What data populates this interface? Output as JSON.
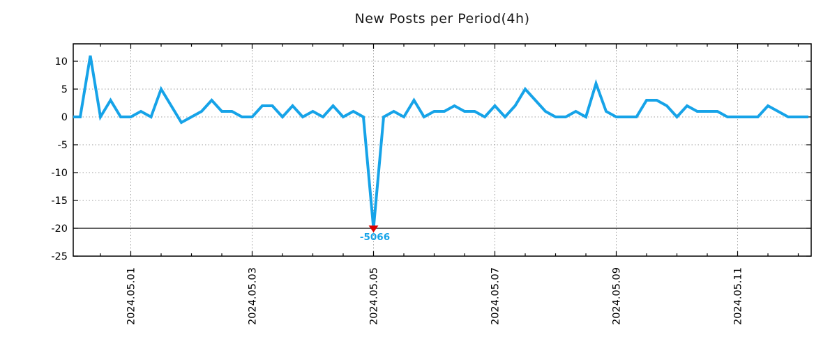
{
  "title": "New Posts per Period(4h)",
  "colors": {
    "line": "#16a3e8",
    "marker": "#dd0000",
    "grid": "#9e9e9e",
    "axis": "#000000",
    "title_text": "#1a1a1a",
    "min_line": "#000000"
  },
  "chart_data": {
    "type": "line",
    "title": "New Posts per Period(4h)",
    "xlabel": "",
    "ylabel": "",
    "x_start": "2024.04.30 00:00",
    "period_hours": 4,
    "values": [
      0,
      0,
      11,
      0,
      3,
      0,
      0,
      1,
      0,
      5,
      2,
      -1,
      0,
      1,
      3,
      1,
      1,
      0,
      0,
      2,
      2,
      0,
      2,
      0,
      1,
      0,
      2,
      0,
      1,
      0,
      -5066,
      0,
      1,
      0,
      3,
      0,
      1,
      1,
      2,
      1,
      1,
      0,
      2,
      0,
      2,
      5,
      3,
      1,
      0,
      0,
      1,
      0,
      6,
      1,
      0,
      0,
      0,
      3,
      3,
      2,
      0,
      2,
      1,
      1,
      1,
      0,
      0,
      0,
      0,
      2,
      1,
      0,
      0,
      0
    ],
    "y_ticks": [
      10,
      5,
      0,
      -5,
      -10,
      -15,
      -20,
      -25
    ],
    "x_tick_labels": [
      "2024.05.01",
      "2024.05.03",
      "2024.05.05",
      "2024.05.07",
      "2024.05.09",
      "2024.05.11"
    ],
    "x_major_tick_every": "2 days",
    "x_minor_tick_every": "12 hours",
    "ylim": [
      -25,
      13.1
    ],
    "grid": true,
    "legend": "none",
    "min_annotation": {
      "label": "-5066",
      "at_index": 30,
      "clipped_at": -20,
      "marker": "red-triangle-down",
      "min_reference_line": -20
    }
  }
}
